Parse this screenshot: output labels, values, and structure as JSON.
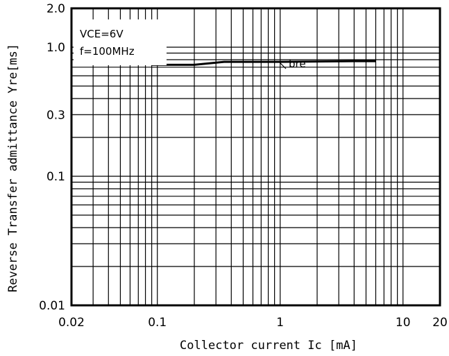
{
  "chart_data": {
    "type": "line",
    "x_scale": "log",
    "y_scale": "log",
    "xlim": [
      0.02,
      20
    ],
    "ylim": [
      0.01,
      2.0
    ],
    "xlabel": "Collector current",
    "xlabel_symbol": "Ic",
    "xlabel_unit": "[mA]",
    "ylabel": "Reverse Transfer admittance",
    "ylabel_symbol": "Yre",
    "ylabel_unit": "[ms]",
    "x_ticks": [
      {
        "value": 0.02,
        "label": "0.02"
      },
      {
        "value": 0.1,
        "label": "0.1"
      },
      {
        "value": 1,
        "label": "1"
      },
      {
        "value": 10,
        "label": "10"
      },
      {
        "value": 20,
        "label": "20"
      }
    ],
    "y_ticks": [
      {
        "value": 0.01,
        "label": "0.01"
      },
      {
        "value": 0.1,
        "label": "0.1"
      },
      {
        "value": 0.3,
        "label": "0.3"
      },
      {
        "value": 1.0,
        "label": "1.0"
      },
      {
        "value": 2.0,
        "label": "2.0"
      }
    ],
    "conditions": {
      "vce_symbol": "VCE",
      "vce_value": "=6V",
      "frequency": "f=100MHz"
    },
    "grid": true,
    "series": [
      {
        "name": "bre",
        "x": [
          0.09,
          0.2,
          0.35,
          0.5,
          1,
          2,
          4,
          6
        ],
        "y": [
          0.73,
          0.73,
          0.77,
          0.77,
          0.77,
          0.775,
          0.78,
          0.78
        ]
      }
    ]
  }
}
